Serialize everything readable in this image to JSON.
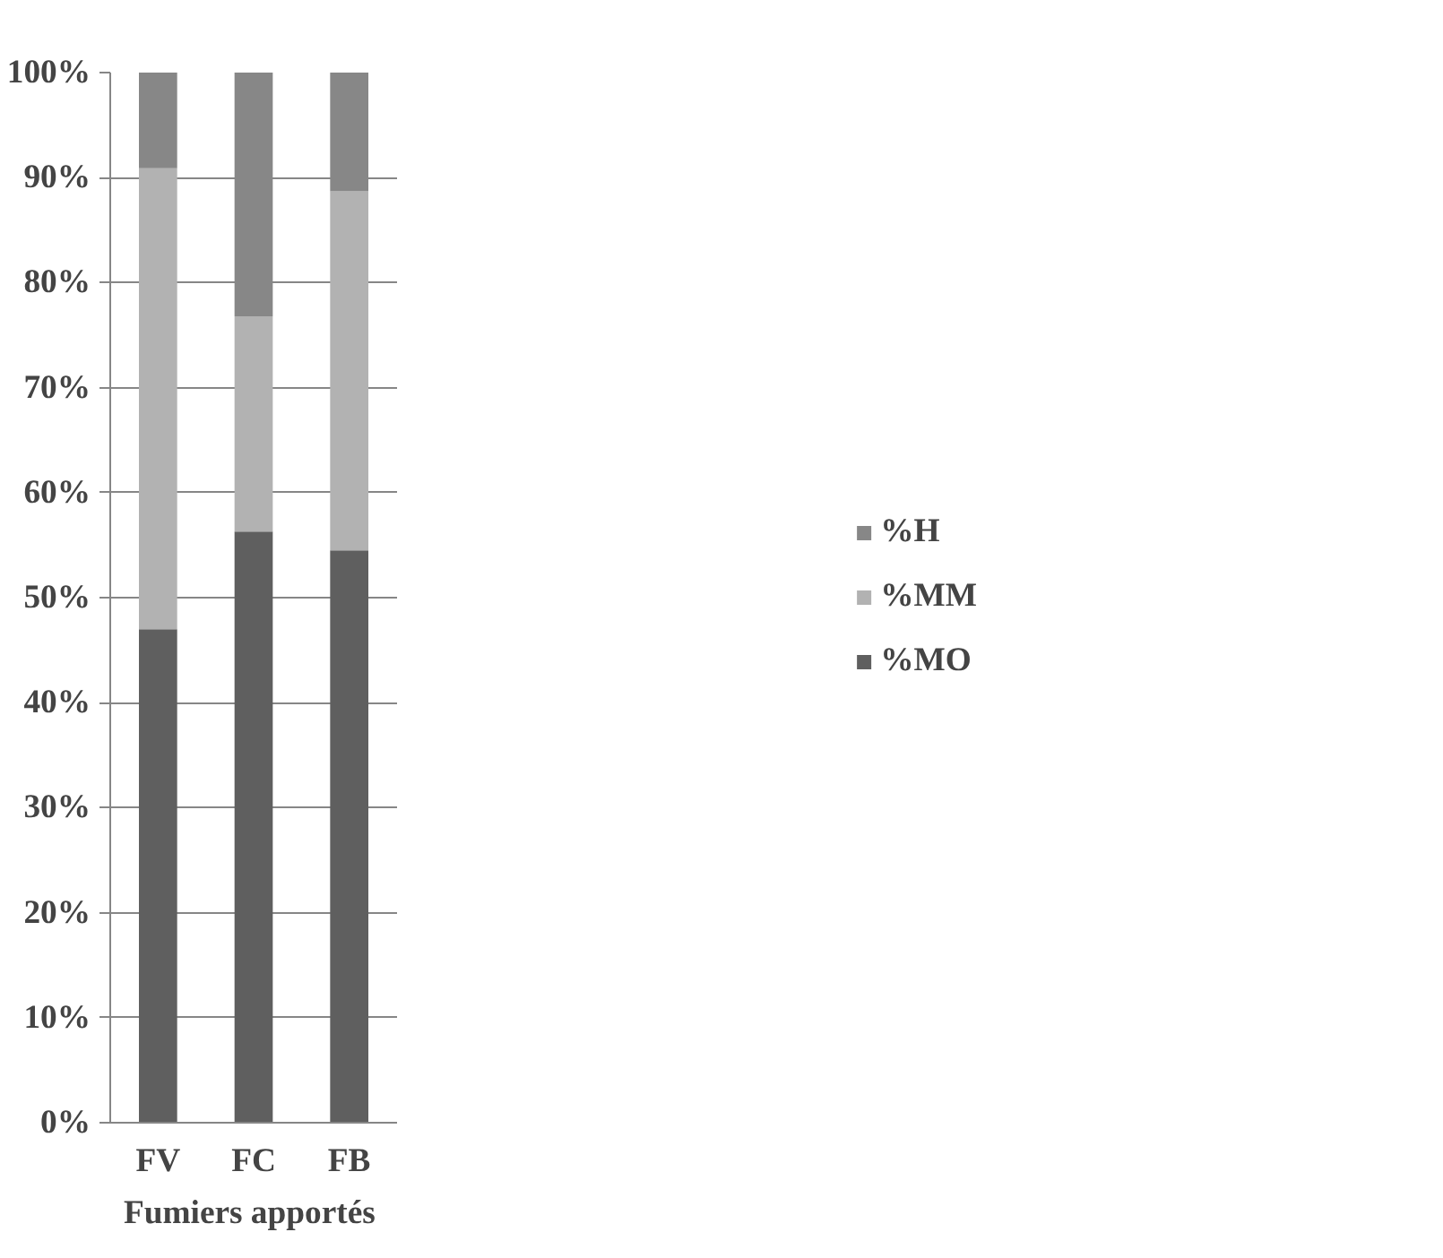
{
  "chart_data": {
    "type": "bar",
    "stacked": true,
    "xlabel": "Fumiers  apportés",
    "categories": [
      "FV",
      "FC",
      "FB"
    ],
    "series": [
      {
        "name": "%MO",
        "color": "#5f5f5f",
        "values": [
          47.0,
          56.3,
          54.5
        ]
      },
      {
        "name": "%MM",
        "color": "#b2b2b2",
        "values": [
          43.9,
          20.5,
          34.2
        ]
      },
      {
        "name": "%H",
        "color": "#878787",
        "values": [
          9.1,
          23.2,
          11.3
        ]
      }
    ],
    "ylim": [
      0,
      100
    ],
    "yticks": [
      {
        "value": 0,
        "label": "0%"
      },
      {
        "value": 10,
        "label": "10%"
      },
      {
        "value": 20,
        "label": "20%"
      },
      {
        "value": 30,
        "label": "30%"
      },
      {
        "value": 40,
        "label": "40%"
      },
      {
        "value": 50,
        "label": "50%"
      },
      {
        "value": 60,
        "label": "60%"
      },
      {
        "value": 70,
        "label": "70%"
      },
      {
        "value": 80,
        "label": "80%"
      },
      {
        "value": 90,
        "label": "90%"
      },
      {
        "value": 100,
        "label": "100%"
      }
    ],
    "grid": "y",
    "legend": "right"
  }
}
